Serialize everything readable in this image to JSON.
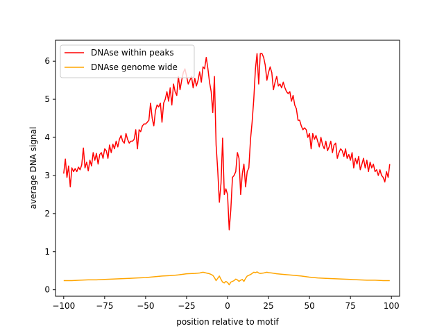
{
  "chart_data": {
    "type": "line",
    "xlabel": "position relative to motif",
    "ylabel": "average DNA signal",
    "xlim": [
      -105,
      105
    ],
    "ylim": [
      -0.17,
      6.55
    ],
    "x_ticks": [
      -100,
      -75,
      -50,
      -25,
      0,
      25,
      50,
      75,
      100
    ],
    "y_ticks": [
      0,
      1,
      2,
      3,
      4,
      5,
      6
    ],
    "grid": false,
    "legend_position": "top-left",
    "series": [
      {
        "name": "DNAse within peaks",
        "color": "#ff0000",
        "points": [
          [
            -100,
            3.05
          ],
          [
            -99,
            3.43
          ],
          [
            -98,
            2.95
          ],
          [
            -97,
            3.25
          ],
          [
            -96,
            2.7
          ],
          [
            -95,
            3.2
          ],
          [
            -94,
            3.1
          ],
          [
            -93,
            3.18
          ],
          [
            -92,
            3.1
          ],
          [
            -91,
            3.22
          ],
          [
            -90,
            3.15
          ],
          [
            -89,
            3.28
          ],
          [
            -88,
            3.72
          ],
          [
            -87,
            3.2
          ],
          [
            -86,
            3.35
          ],
          [
            -85,
            3.12
          ],
          [
            -84,
            3.4
          ],
          [
            -83,
            3.25
          ],
          [
            -82,
            3.6
          ],
          [
            -81,
            3.4
          ],
          [
            -80,
            3.58
          ],
          [
            -79,
            3.3
          ],
          [
            -78,
            3.55
          ],
          [
            -77,
            3.6
          ],
          [
            -76,
            3.45
          ],
          [
            -75,
            3.7
          ],
          [
            -74,
            3.65
          ],
          [
            -73,
            3.45
          ],
          [
            -72,
            3.8
          ],
          [
            -71,
            3.6
          ],
          [
            -70,
            3.82
          ],
          [
            -69,
            3.7
          ],
          [
            -68,
            3.9
          ],
          [
            -67,
            3.75
          ],
          [
            -66,
            3.95
          ],
          [
            -65,
            4.05
          ],
          [
            -64,
            3.9
          ],
          [
            -63,
            3.85
          ],
          [
            -62,
            4.1
          ],
          [
            -61,
            3.95
          ],
          [
            -60,
            3.85
          ],
          [
            -59,
            3.9
          ],
          [
            -58,
            3.9
          ],
          [
            -57,
            3.95
          ],
          [
            -56,
            4.2
          ],
          [
            -55,
            3.7
          ],
          [
            -54,
            4.2
          ],
          [
            -53,
            4.15
          ],
          [
            -52,
            4.3
          ],
          [
            -51,
            4.35
          ],
          [
            -50,
            4.35
          ],
          [
            -49,
            4.4
          ],
          [
            -48,
            4.45
          ],
          [
            -47,
            4.9
          ],
          [
            -46,
            4.5
          ],
          [
            -45,
            4.3
          ],
          [
            -44,
            4.7
          ],
          [
            -43,
            4.85
          ],
          [
            -42,
            4.8
          ],
          [
            -41,
            4.9
          ],
          [
            -40,
            4.4
          ],
          [
            -39,
            4.9
          ],
          [
            -38,
            5.0
          ],
          [
            -37,
            5.2
          ],
          [
            -36,
            4.95
          ],
          [
            -35,
            5.3
          ],
          [
            -34,
            4.85
          ],
          [
            -33,
            5.4
          ],
          [
            -32,
            5.2
          ],
          [
            -31,
            5.1
          ],
          [
            -30,
            5.6
          ],
          [
            -29,
            5.25
          ],
          [
            -28,
            5.5
          ],
          [
            -27,
            5.7
          ],
          [
            -26,
            5.8
          ],
          [
            -25,
            5.6
          ],
          [
            -24,
            5.4
          ],
          [
            -23,
            5.5
          ],
          [
            -22,
            5.6
          ],
          [
            -21,
            5.3
          ],
          [
            -20,
            5.55
          ],
          [
            -19,
            5.35
          ],
          [
            -18,
            5.5
          ],
          [
            -17,
            5.72
          ],
          [
            -16,
            5.45
          ],
          [
            -15,
            5.85
          ],
          [
            -14,
            5.8
          ],
          [
            -13,
            6.1
          ],
          [
            -12,
            5.8
          ],
          [
            -11,
            5.45
          ],
          [
            -10,
            5.2
          ],
          [
            -9,
            4.65
          ],
          [
            -8,
            5.6
          ],
          [
            -7,
            3.8
          ],
          [
            -6,
            3.15
          ],
          [
            -5,
            2.3
          ],
          [
            -4,
            2.8
          ],
          [
            -3,
            3.98
          ],
          [
            -2,
            2.5
          ],
          [
            -1,
            2.65
          ],
          [
            0,
            2.5
          ],
          [
            1,
            1.57
          ],
          [
            2,
            2.1
          ],
          [
            3,
            2.95
          ],
          [
            4,
            3.0
          ],
          [
            5,
            3.1
          ],
          [
            6,
            3.6
          ],
          [
            7,
            3.45
          ],
          [
            8,
            2.5
          ],
          [
            9,
            3.05
          ],
          [
            10,
            3.3
          ],
          [
            11,
            2.7
          ],
          [
            12,
            3.1
          ],
          [
            13,
            3.2
          ],
          [
            14,
            3.95
          ],
          [
            15,
            4.4
          ],
          [
            16,
            5.0
          ],
          [
            17,
            5.8
          ],
          [
            18,
            6.2
          ],
          [
            19,
            5.4
          ],
          [
            20,
            6.2
          ],
          [
            21,
            6.2
          ],
          [
            22,
            6.1
          ],
          [
            23,
            5.9
          ],
          [
            24,
            5.5
          ],
          [
            25,
            5.7
          ],
          [
            26,
            5.85
          ],
          [
            27,
            5.7
          ],
          [
            28,
            5.25
          ],
          [
            29,
            5.45
          ],
          [
            30,
            5.6
          ],
          [
            31,
            5.35
          ],
          [
            32,
            5.4
          ],
          [
            33,
            5.3
          ],
          [
            34,
            5.45
          ],
          [
            35,
            5.3
          ],
          [
            36,
            5.2
          ],
          [
            37,
            5.15
          ],
          [
            38,
            5.2
          ],
          [
            39,
            4.95
          ],
          [
            40,
            5.1
          ],
          [
            41,
            4.85
          ],
          [
            42,
            4.75
          ],
          [
            43,
            4.45
          ],
          [
            44,
            4.45
          ],
          [
            45,
            4.3
          ],
          [
            46,
            4.2
          ],
          [
            47,
            4.25
          ],
          [
            48,
            4.2
          ],
          [
            49,
            4.0
          ],
          [
            50,
            4.1
          ],
          [
            51,
            3.7
          ],
          [
            52,
            4.1
          ],
          [
            53,
            3.95
          ],
          [
            54,
            4.05
          ],
          [
            55,
            3.9
          ],
          [
            56,
            3.75
          ],
          [
            57,
            4.0
          ],
          [
            58,
            3.8
          ],
          [
            59,
            3.7
          ],
          [
            60,
            3.9
          ],
          [
            61,
            3.65
          ],
          [
            62,
            3.75
          ],
          [
            63,
            3.9
          ],
          [
            64,
            3.6
          ],
          [
            65,
            3.8
          ],
          [
            66,
            3.85
          ],
          [
            67,
            3.45
          ],
          [
            68,
            3.6
          ],
          [
            69,
            3.7
          ],
          [
            70,
            3.65
          ],
          [
            71,
            3.5
          ],
          [
            72,
            3.7
          ],
          [
            73,
            3.45
          ],
          [
            74,
            3.55
          ],
          [
            75,
            3.4
          ],
          [
            76,
            3.6
          ],
          [
            77,
            3.2
          ],
          [
            78,
            3.45
          ],
          [
            79,
            3.3
          ],
          [
            80,
            3.5
          ],
          [
            81,
            3.15
          ],
          [
            82,
            3.3
          ],
          [
            83,
            3.45
          ],
          [
            84,
            3.2
          ],
          [
            85,
            3.4
          ],
          [
            86,
            3.1
          ],
          [
            87,
            3.35
          ],
          [
            88,
            3.2
          ],
          [
            89,
            3.3
          ],
          [
            90,
            3.1
          ],
          [
            91,
            3.15
          ],
          [
            92,
            3.0
          ],
          [
            93,
            3.15
          ],
          [
            94,
            3.0
          ],
          [
            95,
            2.95
          ],
          [
            96,
            2.83
          ],
          [
            97,
            3.1
          ],
          [
            98,
            2.95
          ],
          [
            99,
            3.3
          ]
        ]
      },
      {
        "name": "DNAse genome wide",
        "color": "#ffa500",
        "points": [
          [
            -100,
            0.24
          ],
          [
            -95,
            0.24
          ],
          [
            -90,
            0.25
          ],
          [
            -85,
            0.26
          ],
          [
            -80,
            0.26
          ],
          [
            -75,
            0.27
          ],
          [
            -70,
            0.28
          ],
          [
            -65,
            0.29
          ],
          [
            -60,
            0.3
          ],
          [
            -55,
            0.31
          ],
          [
            -50,
            0.32
          ],
          [
            -45,
            0.34
          ],
          [
            -40,
            0.36
          ],
          [
            -35,
            0.37
          ],
          [
            -30,
            0.39
          ],
          [
            -25,
            0.42
          ],
          [
            -20,
            0.43
          ],
          [
            -17,
            0.44
          ],
          [
            -15,
            0.46
          ],
          [
            -13,
            0.44
          ],
          [
            -11,
            0.42
          ],
          [
            -9,
            0.38
          ],
          [
            -8,
            0.32
          ],
          [
            -7,
            0.24
          ],
          [
            -6,
            0.3
          ],
          [
            -5,
            0.36
          ],
          [
            -4,
            0.27
          ],
          [
            -3,
            0.2
          ],
          [
            -2,
            0.18
          ],
          [
            -1,
            0.22
          ],
          [
            0,
            0.19
          ],
          [
            1,
            0.13
          ],
          [
            2,
            0.2
          ],
          [
            3,
            0.22
          ],
          [
            4,
            0.24
          ],
          [
            5,
            0.28
          ],
          [
            6,
            0.26
          ],
          [
            7,
            0.22
          ],
          [
            8,
            0.25
          ],
          [
            9,
            0.27
          ],
          [
            10,
            0.22
          ],
          [
            11,
            0.3
          ],
          [
            12,
            0.36
          ],
          [
            13,
            0.38
          ],
          [
            14,
            0.4
          ],
          [
            15,
            0.43
          ],
          [
            16,
            0.46
          ],
          [
            17,
            0.45
          ],
          [
            18,
            0.47
          ],
          [
            19,
            0.44
          ],
          [
            20,
            0.43
          ],
          [
            22,
            0.44
          ],
          [
            24,
            0.46
          ],
          [
            25,
            0.45
          ],
          [
            27,
            0.44
          ],
          [
            30,
            0.42
          ],
          [
            35,
            0.4
          ],
          [
            40,
            0.38
          ],
          [
            45,
            0.36
          ],
          [
            50,
            0.33
          ],
          [
            55,
            0.31
          ],
          [
            60,
            0.3
          ],
          [
            65,
            0.29
          ],
          [
            70,
            0.28
          ],
          [
            75,
            0.27
          ],
          [
            80,
            0.26
          ],
          [
            85,
            0.25
          ],
          [
            90,
            0.25
          ],
          [
            95,
            0.24
          ],
          [
            99,
            0.24
          ]
        ]
      }
    ]
  }
}
